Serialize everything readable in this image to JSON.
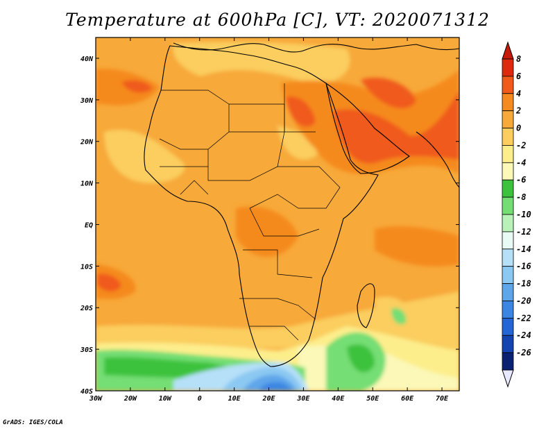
{
  "title": "Temperature at 600hPa [C], VT: 2020071312",
  "credit": "GrADS: IGES/COLA",
  "map": {
    "lon_range": [
      -30,
      75
    ],
    "lat_range": [
      -40,
      45
    ],
    "lon_ticks": [
      {
        "value": -30,
        "label": "30W"
      },
      {
        "value": -20,
        "label": "20W"
      },
      {
        "value": -10,
        "label": "10W"
      },
      {
        "value": 0,
        "label": "0"
      },
      {
        "value": 10,
        "label": "10E"
      },
      {
        "value": 20,
        "label": "20E"
      },
      {
        "value": 30,
        "label": "30E"
      },
      {
        "value": 40,
        "label": "40E"
      },
      {
        "value": 50,
        "label": "50E"
      },
      {
        "value": 60,
        "label": "60E"
      },
      {
        "value": 70,
        "label": "70E"
      }
    ],
    "lat_ticks": [
      {
        "value": 40,
        "label": "40N"
      },
      {
        "value": 30,
        "label": "30N"
      },
      {
        "value": 20,
        "label": "20N"
      },
      {
        "value": 10,
        "label": "10N"
      },
      {
        "value": 0,
        "label": "EQ"
      },
      {
        "value": -10,
        "label": "10S"
      },
      {
        "value": -20,
        "label": "20S"
      },
      {
        "value": -30,
        "label": "30S"
      },
      {
        "value": -40,
        "label": "40S"
      }
    ]
  },
  "colorbar": {
    "levels": [
      {
        "label": "8",
        "color": "#dd2a0e"
      },
      {
        "label": "6",
        "color": "#f05a1a"
      },
      {
        "label": "4",
        "color": "#f58a1f"
      },
      {
        "label": "2",
        "color": "#f7a93a"
      },
      {
        "label": "0",
        "color": "#fbce5e"
      },
      {
        "label": "-2",
        "color": "#fdee8c"
      },
      {
        "label": "-4",
        "color": "#fbf8b8"
      },
      {
        "label": "-6",
        "color": "#3dc23d"
      },
      {
        "label": "-8",
        "color": "#74de74"
      },
      {
        "label": "-10",
        "color": "#b9f2b9"
      },
      {
        "label": "-12",
        "color": "#e8fbf4"
      },
      {
        "label": "-14",
        "color": "#b6e0f8"
      },
      {
        "label": "-16",
        "color": "#8bc8f2"
      },
      {
        "label": "-18",
        "color": "#5ea6ea"
      },
      {
        "label": "-20",
        "color": "#3a86e2"
      },
      {
        "label": "-22",
        "color": "#2466d6"
      },
      {
        "label": "-24",
        "color": "#1444b0"
      },
      {
        "label": "-26",
        "color": "#0a2070"
      }
    ],
    "over_color": "#c51a08",
    "under_color": "#e8e8ff"
  }
}
